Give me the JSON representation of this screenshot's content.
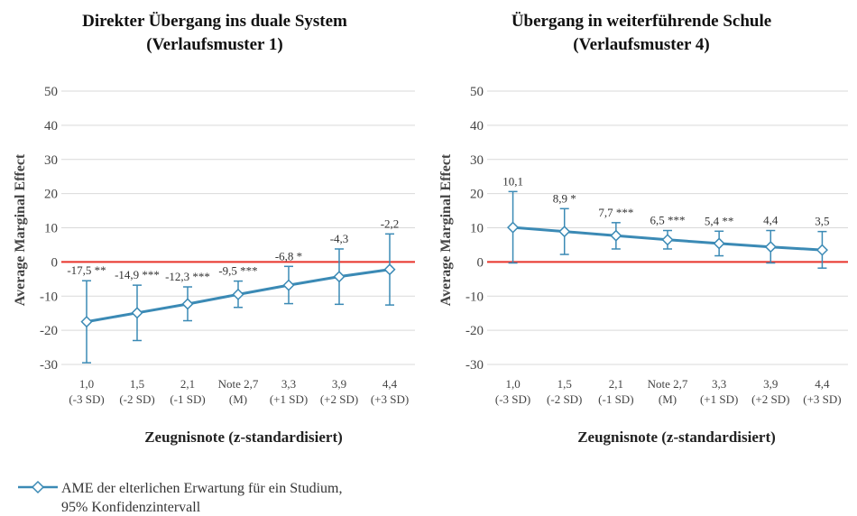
{
  "chart_data": [
    {
      "type": "line",
      "title": [
        "Direkter Übergang ins duale System",
        "(Verlaufsmuster 1)"
      ],
      "xlabel": "Zeugnisnote (z-standardisiert)",
      "ylabel": "Average Marginal Effect",
      "ylim": [
        -30,
        50
      ],
      "yticks": [
        50,
        40,
        30,
        20,
        10,
        0,
        -10,
        -20,
        -30
      ],
      "grid": true,
      "reference_line": 0,
      "categories": [
        [
          "1,0",
          "(-3 SD)"
        ],
        [
          "1,5",
          "(-2 SD)"
        ],
        [
          "2,1",
          "(-1 SD)"
        ],
        [
          "Note 2,7",
          "(M)"
        ],
        [
          "3,3",
          "(+1 SD)"
        ],
        [
          "3,9",
          "(+2 SD)"
        ],
        [
          "4,4",
          "(+3 SD)"
        ]
      ],
      "series": [
        {
          "values": [
            -17.5,
            -14.9,
            -12.3,
            -9.5,
            -6.8,
            -4.3,
            -2.2
          ],
          "ci_low": [
            -29.5,
            -23.0,
            -17.2,
            -13.3,
            -12.2,
            -12.4,
            -12.6
          ],
          "ci_high": [
            -5.5,
            -6.8,
            -7.3,
            -5.6,
            -1.3,
            3.8,
            8.2
          ],
          "labels": [
            "-17,5 **",
            "-14,9 ***",
            "-12,3 ***",
            "-9,5 ***",
            "-6,8 *",
            "-4,3",
            "-2,2"
          ]
        }
      ]
    },
    {
      "type": "line",
      "title": [
        "Übergang in weiterführende Schule",
        "(Verlaufsmuster 4)"
      ],
      "xlabel": "Zeugnisnote (z-standardisiert)",
      "ylabel": "Average Marginal Effect",
      "ylim": [
        -30,
        50
      ],
      "yticks": [
        50,
        40,
        30,
        20,
        10,
        0,
        -10,
        -20,
        -30
      ],
      "grid": true,
      "reference_line": 0,
      "categories": [
        [
          "1,0",
          "(-3 SD)"
        ],
        [
          "1,5",
          "(-2 SD)"
        ],
        [
          "2,1",
          "(-1 SD)"
        ],
        [
          "Note 2,7",
          "(M)"
        ],
        [
          "3,3",
          "(+1 SD)"
        ],
        [
          "3,9",
          "(+2 SD)"
        ],
        [
          "4,4",
          "(+3 SD)"
        ]
      ],
      "series": [
        {
          "values": [
            10.1,
            8.9,
            7.7,
            6.5,
            5.4,
            4.4,
            3.5
          ],
          "ci_low": [
            -0.3,
            2.2,
            3.8,
            3.8,
            1.8,
            -0.3,
            -1.8
          ],
          "ci_high": [
            20.6,
            15.6,
            11.5,
            9.2,
            9.0,
            9.2,
            8.9
          ],
          "labels": [
            "10,1",
            "8,9 *",
            "7,7 ***",
            "6,5 ***",
            "5,4 **",
            "4,4",
            "3,5"
          ]
        }
      ]
    }
  ],
  "legend": {
    "line1": "AME der elterlichen Erwartung für ein Studium,",
    "line2": "95% Konfidenzintervall"
  },
  "colors": {
    "series": "#3b8ab5",
    "reference": "#e8332a",
    "grid": "#d9d9d9"
  }
}
